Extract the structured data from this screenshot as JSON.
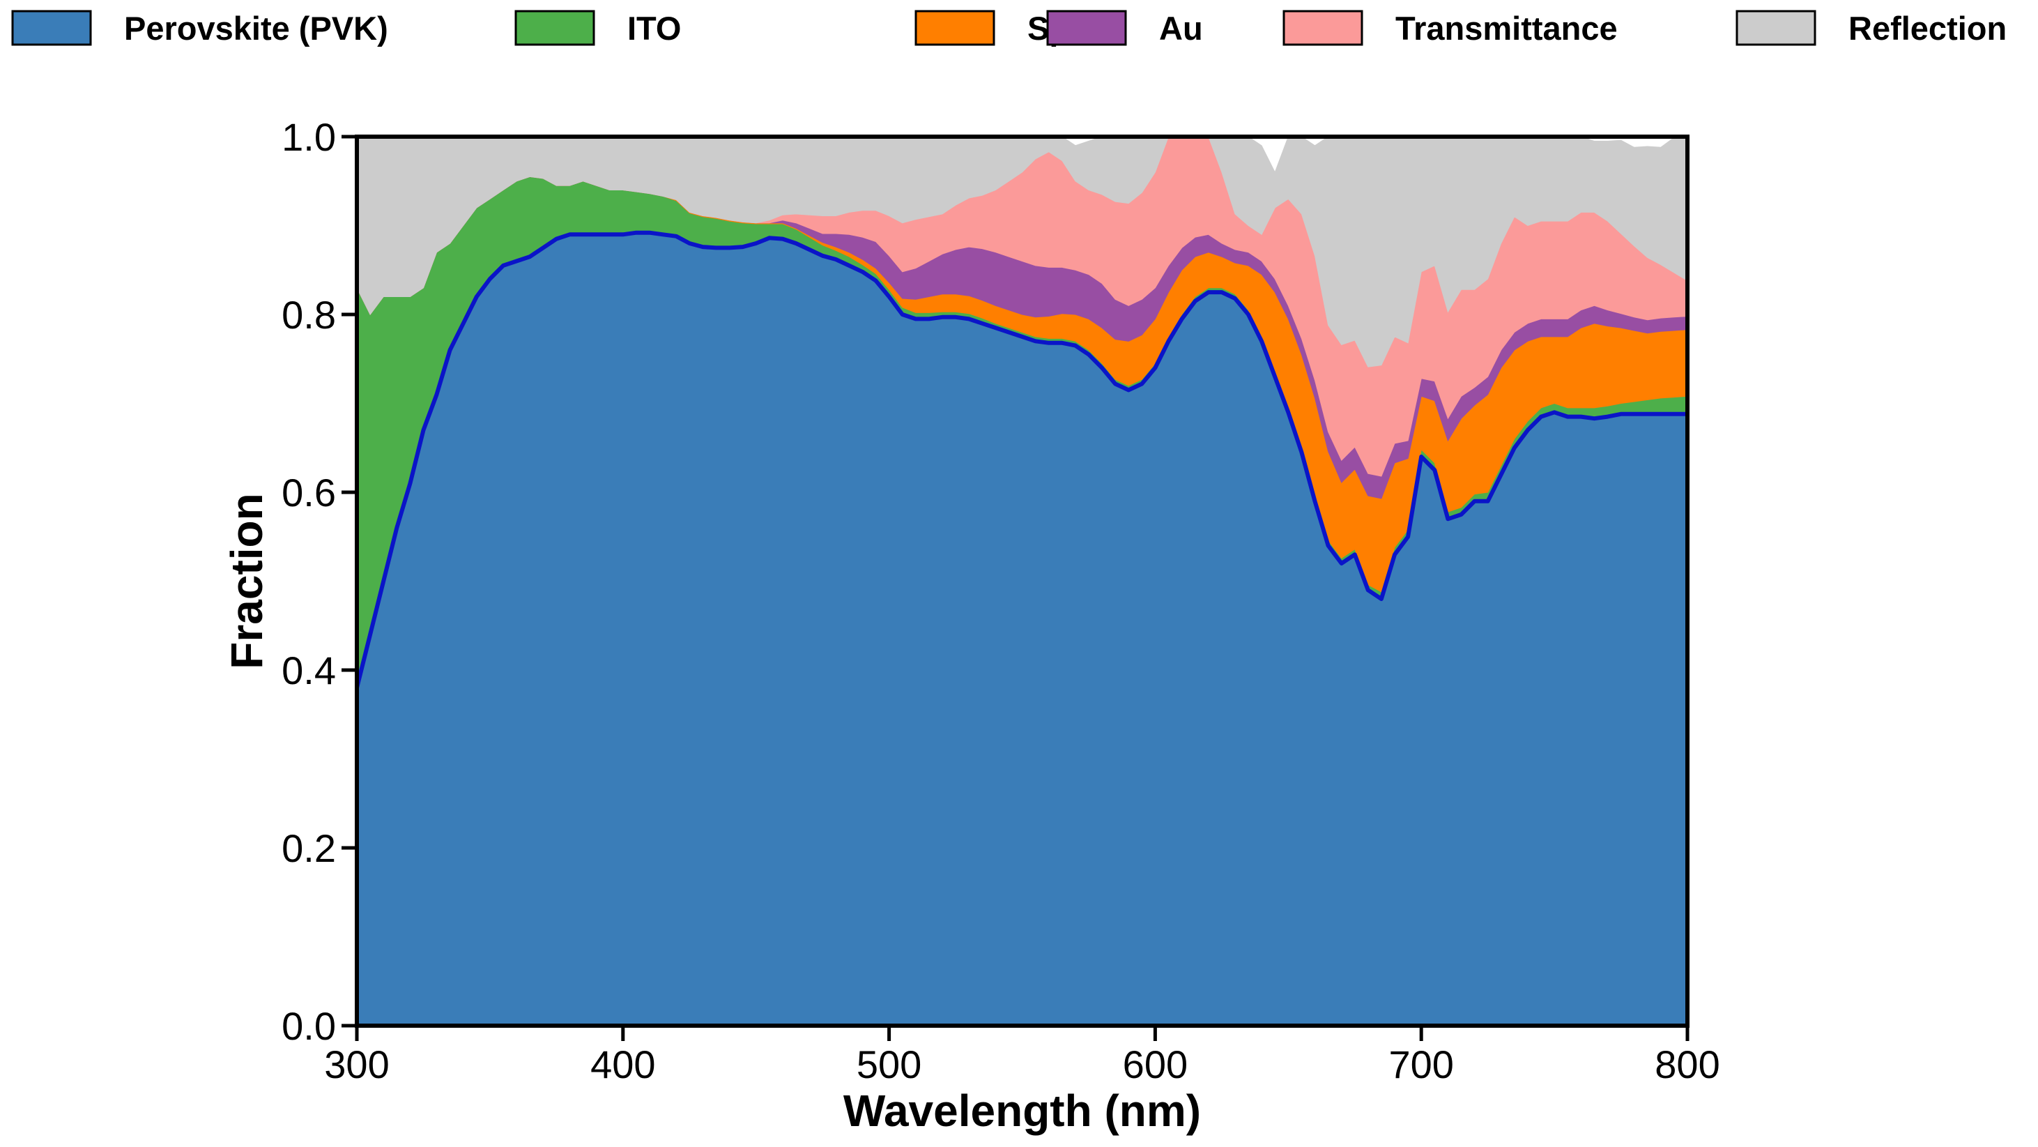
{
  "chart_data": {
    "type": "area",
    "stacked": true,
    "xlabel": "Wavelength (nm)",
    "ylabel": "Fraction",
    "xlim": [
      300,
      800
    ],
    "ylim": [
      0,
      1.0
    ],
    "xticks": [
      300,
      400,
      500,
      600,
      700,
      800
    ],
    "yticks": [
      0.0,
      0.2,
      0.4,
      0.6,
      0.8,
      1.0
    ],
    "xtick_labels": [
      "300",
      "400",
      "500",
      "600",
      "700",
      "800"
    ],
    "ytick_labels": [
      "0.0",
      "0.2",
      "0.4",
      "0.6",
      "0.8",
      "1.0"
    ],
    "legend_position": "top",
    "grid": false,
    "x": [
      300,
      305,
      310,
      315,
      320,
      325,
      330,
      335,
      340,
      345,
      350,
      355,
      360,
      365,
      370,
      375,
      380,
      385,
      390,
      395,
      400,
      405,
      410,
      415,
      420,
      425,
      430,
      435,
      440,
      445,
      450,
      455,
      460,
      465,
      470,
      475,
      480,
      485,
      490,
      495,
      500,
      505,
      510,
      515,
      520,
      525,
      530,
      535,
      540,
      545,
      550,
      555,
      560,
      565,
      570,
      575,
      580,
      585,
      590,
      595,
      600,
      605,
      610,
      615,
      620,
      625,
      630,
      635,
      640,
      645,
      650,
      655,
      660,
      665,
      670,
      675,
      680,
      685,
      690,
      695,
      700,
      705,
      710,
      715,
      720,
      725,
      730,
      735,
      740,
      745,
      750,
      755,
      760,
      765,
      770,
      775,
      780,
      785,
      790,
      795,
      800
    ],
    "series": [
      {
        "name": "Perovskite (PVK)",
        "color": "#3a7db8",
        "values": [
          0.38,
          0.44,
          0.5,
          0.56,
          0.61,
          0.67,
          0.71,
          0.76,
          0.79,
          0.82,
          0.84,
          0.855,
          0.86,
          0.865,
          0.875,
          0.885,
          0.89,
          0.89,
          0.89,
          0.89,
          0.89,
          0.892,
          0.892,
          0.89,
          0.888,
          0.88,
          0.876,
          0.875,
          0.875,
          0.876,
          0.88,
          0.886,
          0.885,
          0.88,
          0.873,
          0.866,
          0.862,
          0.855,
          0.848,
          0.838,
          0.82,
          0.8,
          0.795,
          0.795,
          0.797,
          0.797,
          0.795,
          0.79,
          0.785,
          0.78,
          0.775,
          0.77,
          0.768,
          0.768,
          0.765,
          0.755,
          0.74,
          0.722,
          0.715,
          0.722,
          0.74,
          0.77,
          0.795,
          0.815,
          0.825,
          0.825,
          0.818,
          0.8,
          0.77,
          0.73,
          0.69,
          0.645,
          0.59,
          0.54,
          0.52,
          0.53,
          0.49,
          0.48,
          0.53,
          0.55,
          0.64,
          0.625,
          0.57,
          0.575,
          0.59,
          0.59,
          0.62,
          0.65,
          0.67,
          0.685,
          0.69,
          0.685,
          0.685,
          0.683,
          0.685,
          0.688,
          0.688,
          0.688,
          0.688,
          0.688,
          0.688
        ]
      },
      {
        "name": "ITO",
        "color": "#4daf4a",
        "values": [
          0.45,
          0.36,
          0.32,
          0.26,
          0.21,
          0.16,
          0.16,
          0.12,
          0.11,
          0.1,
          0.09,
          0.085,
          0.09,
          0.09,
          0.078,
          0.06,
          0.055,
          0.06,
          0.055,
          0.05,
          0.05,
          0.046,
          0.044,
          0.043,
          0.04,
          0.034,
          0.034,
          0.033,
          0.03,
          0.027,
          0.022,
          0.016,
          0.017,
          0.016,
          0.014,
          0.012,
          0.01,
          0.01,
          0.008,
          0.008,
          0.008,
          0.008,
          0.007,
          0.007,
          0.006,
          0.006,
          0.006,
          0.006,
          0.005,
          0.005,
          0.005,
          0.005,
          0.005,
          0.005,
          0.005,
          0.005,
          0.005,
          0.005,
          0.005,
          0.005,
          0.005,
          0.005,
          0.005,
          0.005,
          0.005,
          0.005,
          0.005,
          0.005,
          0.005,
          0.005,
          0.005,
          0.005,
          0.006,
          0.006,
          0.006,
          0.006,
          0.006,
          0.008,
          0.008,
          0.008,
          0.008,
          0.008,
          0.008,
          0.008,
          0.008,
          0.01,
          0.01,
          0.01,
          0.01,
          0.01,
          0.01,
          0.01,
          0.01,
          0.012,
          0.012,
          0.012,
          0.014,
          0.016,
          0.018,
          0.019,
          0.02
        ]
      },
      {
        "name": "Spiro",
        "color": "#ff7f00",
        "values": [
          0.0,
          0.0,
          0.0,
          0.0,
          0.0,
          0.0,
          0.0,
          0.0,
          0.0,
          0.0,
          0.0,
          0.0,
          0.0,
          0.0,
          0.0,
          0.0,
          0.0,
          0.0,
          0.0,
          0.0,
          0.0,
          0.0,
          0.0,
          0.0,
          0.001,
          0.001,
          0.001,
          0.001,
          0.001,
          0.001,
          0.001,
          0.001,
          0.001,
          0.001,
          0.002,
          0.003,
          0.004,
          0.005,
          0.006,
          0.006,
          0.008,
          0.01,
          0.015,
          0.018,
          0.02,
          0.02,
          0.02,
          0.02,
          0.02,
          0.02,
          0.02,
          0.022,
          0.025,
          0.028,
          0.03,
          0.035,
          0.04,
          0.045,
          0.05,
          0.05,
          0.05,
          0.05,
          0.05,
          0.045,
          0.04,
          0.035,
          0.035,
          0.05,
          0.07,
          0.09,
          0.1,
          0.105,
          0.11,
          0.1,
          0.085,
          0.09,
          0.1,
          0.105,
          0.095,
          0.08,
          0.06,
          0.07,
          0.08,
          0.1,
          0.1,
          0.11,
          0.11,
          0.1,
          0.09,
          0.08,
          0.075,
          0.08,
          0.09,
          0.095,
          0.09,
          0.085,
          0.08,
          0.075,
          0.075,
          0.075,
          0.075
        ]
      },
      {
        "name": "Au",
        "color": "#984ea3",
        "values": [
          0.0,
          0.0,
          0.0,
          0.0,
          0.0,
          0.0,
          0.0,
          0.0,
          0.0,
          0.0,
          0.0,
          0.0,
          0.0,
          0.0,
          0.0,
          0.0,
          0.0,
          0.0,
          0.0,
          0.0,
          0.0,
          0.0,
          0.0,
          0.0,
          0.0,
          0.0,
          0.0,
          0.0,
          0.0,
          0.0,
          0.0,
          0.0,
          0.003,
          0.006,
          0.008,
          0.01,
          0.015,
          0.02,
          0.025,
          0.03,
          0.03,
          0.03,
          0.035,
          0.04,
          0.045,
          0.05,
          0.055,
          0.058,
          0.06,
          0.06,
          0.06,
          0.058,
          0.055,
          0.052,
          0.05,
          0.05,
          0.05,
          0.045,
          0.04,
          0.04,
          0.035,
          0.03,
          0.025,
          0.022,
          0.02,
          0.015,
          0.015,
          0.015,
          0.015,
          0.015,
          0.015,
          0.018,
          0.02,
          0.022,
          0.025,
          0.025,
          0.025,
          0.025,
          0.022,
          0.02,
          0.02,
          0.022,
          0.025,
          0.025,
          0.02,
          0.02,
          0.02,
          0.02,
          0.02,
          0.02,
          0.02,
          0.02,
          0.02,
          0.02,
          0.018,
          0.016,
          0.015,
          0.015,
          0.015,
          0.015,
          0.015
        ]
      },
      {
        "name": "Transmittance",
        "color": "#fb9a99",
        "values": [
          0.0,
          0.0,
          0.0,
          0.0,
          0.0,
          0.0,
          0.0,
          0.0,
          0.0,
          0.0,
          0.0,
          0.0,
          0.0,
          0.0,
          0.0,
          0.0,
          0.0,
          0.0,
          0.0,
          0.0,
          0.0,
          0.0,
          0.0,
          0.0,
          0.0,
          0.0,
          0.0,
          0.0,
          0.0,
          0.0,
          0.0,
          0.003,
          0.006,
          0.01,
          0.015,
          0.02,
          0.02,
          0.025,
          0.03,
          0.035,
          0.045,
          0.055,
          0.055,
          0.05,
          0.045,
          0.05,
          0.055,
          0.06,
          0.07,
          0.085,
          0.1,
          0.12,
          0.13,
          0.12,
          0.1,
          0.095,
          0.1,
          0.11,
          0.115,
          0.12,
          0.13,
          0.15,
          0.16,
          0.15,
          0.11,
          0.08,
          0.04,
          0.03,
          0.03,
          0.08,
          0.12,
          0.14,
          0.14,
          0.12,
          0.13,
          0.12,
          0.12,
          0.125,
          0.12,
          0.11,
          0.12,
          0.13,
          0.12,
          0.12,
          0.11,
          0.11,
          0.12,
          0.13,
          0.11,
          0.11,
          0.11,
          0.11,
          0.11,
          0.105,
          0.1,
          0.09,
          0.08,
          0.07,
          0.06,
          0.05,
          0.04
        ]
      },
      {
        "name": "Reflection",
        "color": "#cccccc",
        "values": [
          0.17,
          0.2,
          0.18,
          0.18,
          0.18,
          0.17,
          0.13,
          0.12,
          0.1,
          0.08,
          0.07,
          0.06,
          0.05,
          0.045,
          0.047,
          0.055,
          0.055,
          0.05,
          0.055,
          0.06,
          0.06,
          0.062,
          0.064,
          0.067,
          0.071,
          0.085,
          0.089,
          0.091,
          0.094,
          0.096,
          0.097,
          0.094,
          0.088,
          0.087,
          0.088,
          0.089,
          0.089,
          0.085,
          0.083,
          0.083,
          0.089,
          0.097,
          0.093,
          0.09,
          0.087,
          0.077,
          0.069,
          0.066,
          0.06,
          0.05,
          0.04,
          0.025,
          0.017,
          0.027,
          0.04,
          0.055,
          0.065,
          0.075,
          0.075,
          0.063,
          0.04,
          0.0,
          0.0,
          0.028,
          0.065,
          0.13,
          0.17,
          0.1,
          0.1,
          0.04,
          0.07,
          0.092,
          0.124,
          0.212,
          0.234,
          0.229,
          0.259,
          0.262,
          0.255,
          0.232,
          0.16,
          0.145,
          0.205,
          0.172,
          0.172,
          0.17,
          0.13,
          0.09,
          0.11,
          0.095,
          0.105,
          0.095,
          0.085,
          0.08,
          0.09,
          0.105,
          0.111,
          0.125,
          0.132,
          0.152,
          0.162
        ]
      }
    ],
    "boundary_line": {
      "series": "Perovskite (PVK)",
      "color": "#0a14c8"
    }
  }
}
